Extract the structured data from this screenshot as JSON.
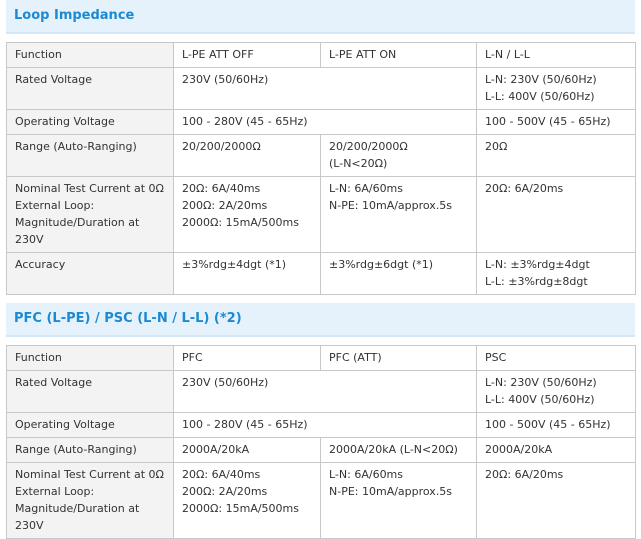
{
  "sections": [
    {
      "title": "Loop Impedance",
      "rows": [
        [
          [
            "Function"
          ],
          [
            "L-PE ATT OFF"
          ],
          [
            "L-PE ATT ON"
          ],
          [
            "L-N / L-L"
          ]
        ],
        [
          [
            "Rated Voltage"
          ],
          [
            "230V (50/60Hz)"
          ],
          [
            "L-N: 230V (50/60Hz)",
            "L-L: 400V (50/60Hz)"
          ]
        ],
        [
          [
            "Operating Voltage"
          ],
          [
            "100 - 280V (45 - 65Hz)"
          ],
          [
            "100 - 500V (45 - 65Hz)"
          ]
        ],
        [
          [
            "Range (Auto-Ranging)"
          ],
          [
            "20/200/2000Ω"
          ],
          [
            "20/200/2000Ω",
            "(L-N<20Ω)"
          ],
          [
            "20Ω"
          ]
        ],
        [
          [
            "Nominal Test Current at 0Ω",
            "External Loop:",
            "Magnitude/Duration at",
            "230V"
          ],
          [
            "20Ω: 6A/40ms",
            "200Ω: 2A/20ms",
            "2000Ω: 15mA/500ms"
          ],
          [
            "L-N: 6A/60ms",
            "N-PE: 10mA/approx.5s"
          ],
          [
            "20Ω: 6A/20ms"
          ]
        ],
        [
          [
            "Accuracy"
          ],
          [
            "±3%rdg±4dgt (*1)"
          ],
          [
            "±3%rdg±6dgt (*1)"
          ],
          [
            "L-N: ±3%rdg±4dgt",
            "L-L: ±3%rdg±8dgt"
          ]
        ]
      ]
    },
    {
      "title": "PFC (L-PE) / PSC (L-N / L-L) (*2)",
      "rows": [
        [
          [
            "Function"
          ],
          [
            "PFC"
          ],
          [
            "PFC (ATT)"
          ],
          [
            "PSC"
          ]
        ],
        [
          [
            "Rated Voltage"
          ],
          [
            "230V (50/60Hz)"
          ],
          [
            "L-N: 230V (50/60Hz)",
            "L-L: 400V (50/60Hz)"
          ]
        ],
        [
          [
            "Operating Voltage"
          ],
          [
            "100 - 280V (45 - 65Hz)"
          ],
          [
            "100 - 500V (45 - 65Hz)"
          ]
        ],
        [
          [
            "Range (Auto-Ranging)"
          ],
          [
            "2000A/20kA"
          ],
          [
            "2000A/20kA (L-N<20Ω)"
          ],
          [
            "2000A/20kA"
          ]
        ],
        [
          [
            "Nominal Test Current at 0Ω",
            "External Loop:",
            "Magnitude/Duration at",
            "230V"
          ],
          [
            "20Ω: 6A/40ms",
            "200Ω: 2A/20ms",
            "2000Ω: 15mA/500ms"
          ],
          [
            "L-N: 6A/60ms",
            "N-PE: 10mA/approx.5s"
          ],
          [
            "20Ω: 6A/20ms"
          ]
        ]
      ]
    }
  ]
}
